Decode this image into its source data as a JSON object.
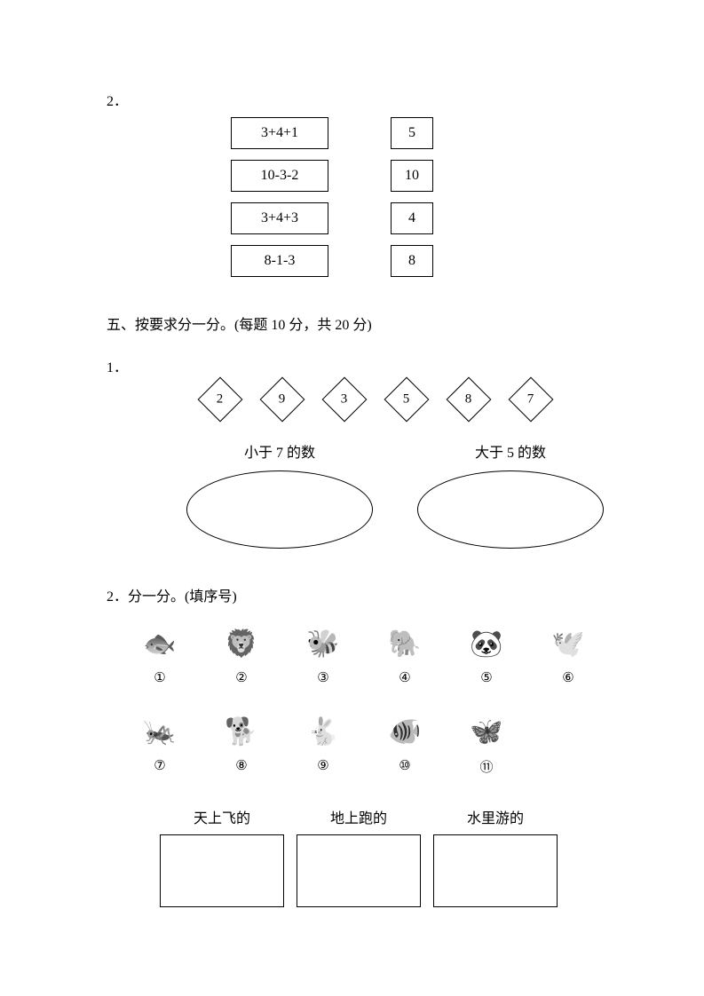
{
  "q2_num": "2．",
  "match": {
    "equations": [
      "3+4+1",
      "10-3-2",
      "3+4+3",
      "8-1-3"
    ],
    "numbers": [
      "5",
      "10",
      "4",
      "8"
    ]
  },
  "section5_title": "五、按要求分一分。(每题 10 分，共 20 分)",
  "q5_1_num": "1．",
  "diamonds": [
    "2",
    "9",
    "3",
    "5",
    "8",
    "7"
  ],
  "ovals": {
    "left_label": "小于 7 的数",
    "right_label": "大于 5 的数"
  },
  "q5_2_title": "2．分一分。(填序号)",
  "animals": {
    "row1": [
      {
        "icon": "🐟",
        "num": "①"
      },
      {
        "icon": "🦁",
        "num": "②"
      },
      {
        "icon": "🐝",
        "num": "③"
      },
      {
        "icon": "🐘",
        "num": "④"
      },
      {
        "icon": "🐼",
        "num": "⑤"
      },
      {
        "icon": "🕊️",
        "num": "⑥"
      }
    ],
    "row2": [
      {
        "icon": "🦗",
        "num": "⑦"
      },
      {
        "icon": "🐕",
        "num": "⑧"
      },
      {
        "icon": "🐇",
        "num": "⑨"
      },
      {
        "icon": "🐠",
        "num": "⑩"
      },
      {
        "icon": "🦋",
        "num": "⑪"
      }
    ]
  },
  "categories": {
    "fly": "天上飞的",
    "run": "地上跑的",
    "swim": "水里游的"
  }
}
